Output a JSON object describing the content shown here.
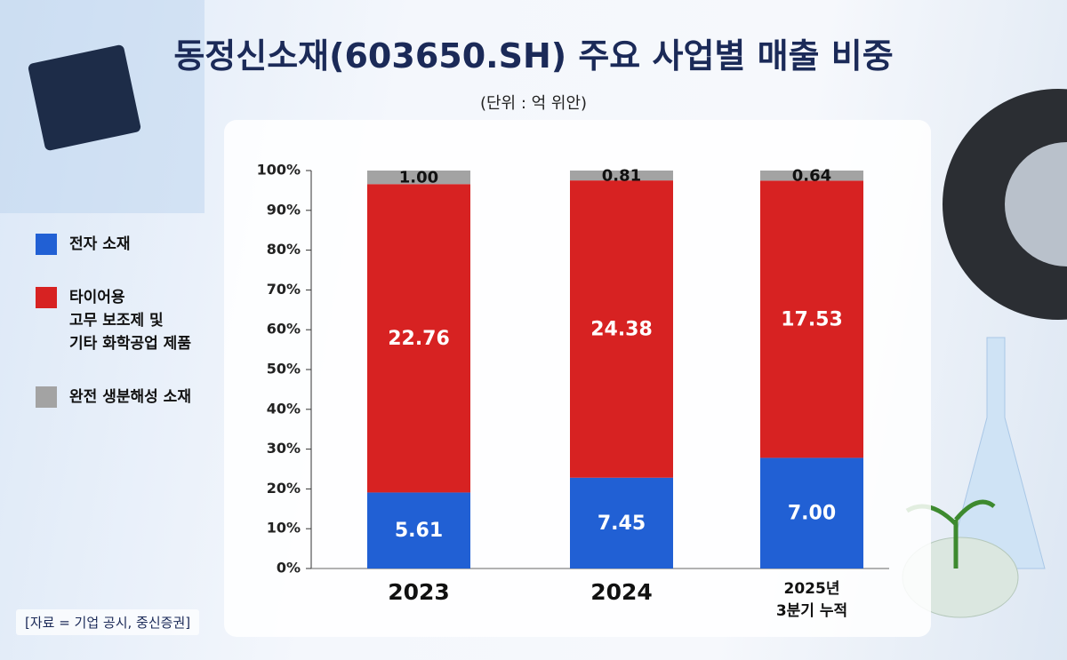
{
  "chart_data": {
    "type": "bar",
    "stacked": "percent",
    "title": "동정신소재(603650.SH) 주요 사업별 매출 비중",
    "subtitle": "(단위 : 억 위안)",
    "source": "[자료 = 기업 공시, 중신증권]",
    "categories": [
      "2023",
      "2024",
      "2025년\n3분기 누적"
    ],
    "series": [
      {
        "name": "전자 소재",
        "color": "#2160d4",
        "values": [
          5.61,
          7.45,
          7.0
        ],
        "value_labels": [
          "5.61",
          "7.45",
          "7.00"
        ]
      },
      {
        "name": "타이어용\n고무 보조제 및\n기타 화학공업 제품",
        "color": "#d72222",
        "values": [
          22.76,
          24.38,
          17.53
        ]
      },
      {
        "name": "완전 생분해성 소재",
        "color": "#a3a3a3",
        "values": [
          1.0,
          0.81,
          0.64
        ],
        "value_labels": [
          "1.00",
          "0.81",
          "0.64"
        ]
      }
    ],
    "ylim": [
      0,
      100
    ],
    "yticks": [
      {
        "value": 0,
        "label": "0%"
      },
      {
        "value": 10,
        "label": "10%"
      },
      {
        "value": 20,
        "label": "20%"
      },
      {
        "value": 30,
        "label": "30%"
      },
      {
        "value": 40,
        "label": "40%"
      },
      {
        "value": 50,
        "label": "50%"
      },
      {
        "value": 60,
        "label": "60%"
      },
      {
        "value": 70,
        "label": "70%"
      },
      {
        "value": 80,
        "label": "80%"
      },
      {
        "value": 90,
        "label": "90%"
      },
      {
        "value": 100,
        "label": "100%"
      }
    ],
    "legend": "left"
  }
}
